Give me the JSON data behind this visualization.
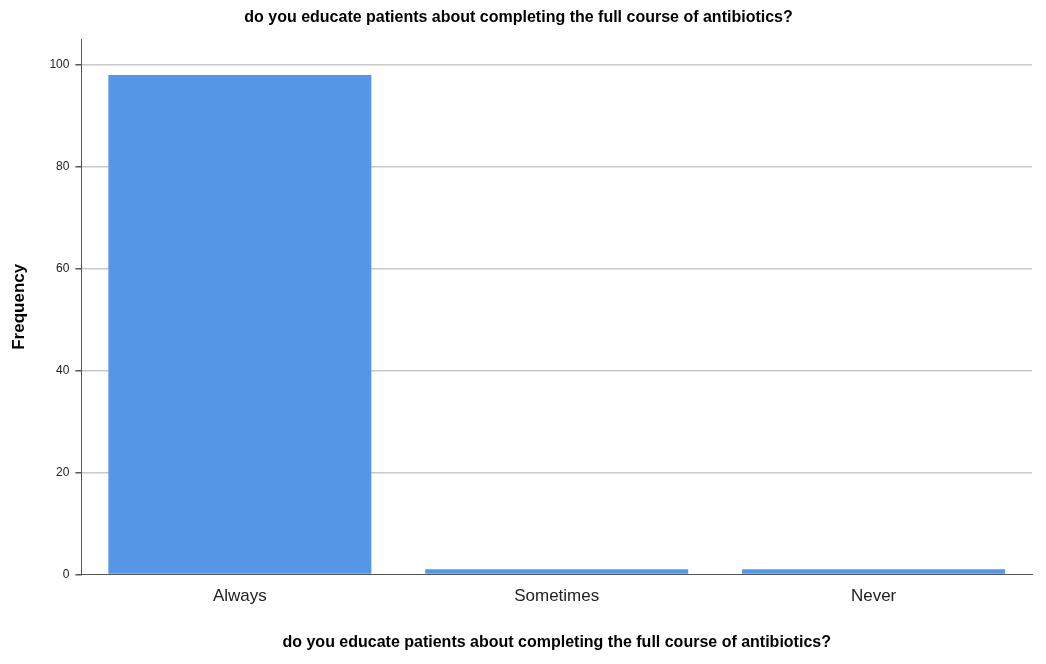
{
  "chart_data": {
    "type": "bar",
    "title": "do you educate patients about completing the full course of antibiotics?",
    "xlabel": "do you educate patients about completing the full course of antibiotics?",
    "ylabel": "Frequency",
    "categories": [
      "Always",
      "Sometimes",
      "Never"
    ],
    "values": [
      98,
      1,
      1
    ],
    "color": "#5596e6",
    "ylim": [
      0,
      105
    ],
    "yticks": [
      0,
      20,
      40,
      60,
      80,
      100
    ],
    "grid": "y"
  }
}
